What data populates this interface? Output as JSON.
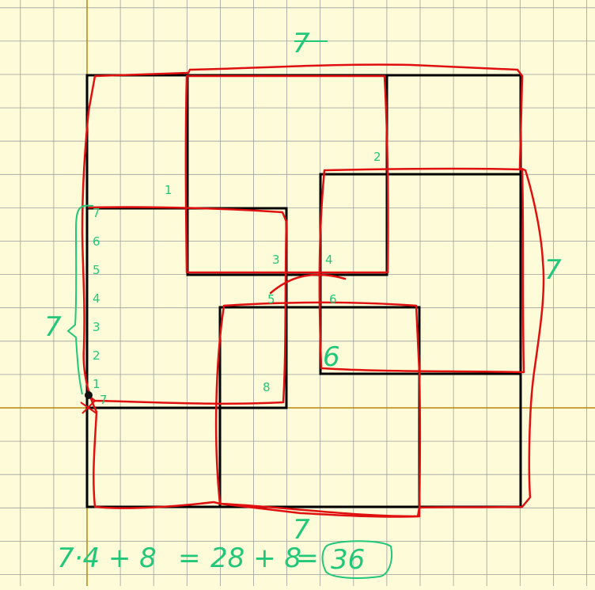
{
  "colors": {
    "background": "#fefcd8",
    "grid_line": "#9e9e9e",
    "axis": "#b8860b",
    "black_square": "#000000",
    "red_outline": "#e01010",
    "green_annotation": "#22c77a"
  },
  "labels": {
    "side_top": "7",
    "side_right": "7",
    "side_bottom": "7",
    "side_left": "7",
    "count_1": "1",
    "count_2": "2",
    "count_3": "3",
    "count_4": "4",
    "count_5": "5",
    "count_6": "6",
    "count_6b": "6",
    "count_7": "7",
    "count_8": "8",
    "ruler": [
      "7",
      "6",
      "5",
      "4",
      "3",
      "2",
      "1"
    ],
    "formula_a": "7·4 + 8",
    "formula_eq1": "=",
    "formula_b": "28 + 8",
    "formula_eq2": "=",
    "formula_result": "36"
  }
}
